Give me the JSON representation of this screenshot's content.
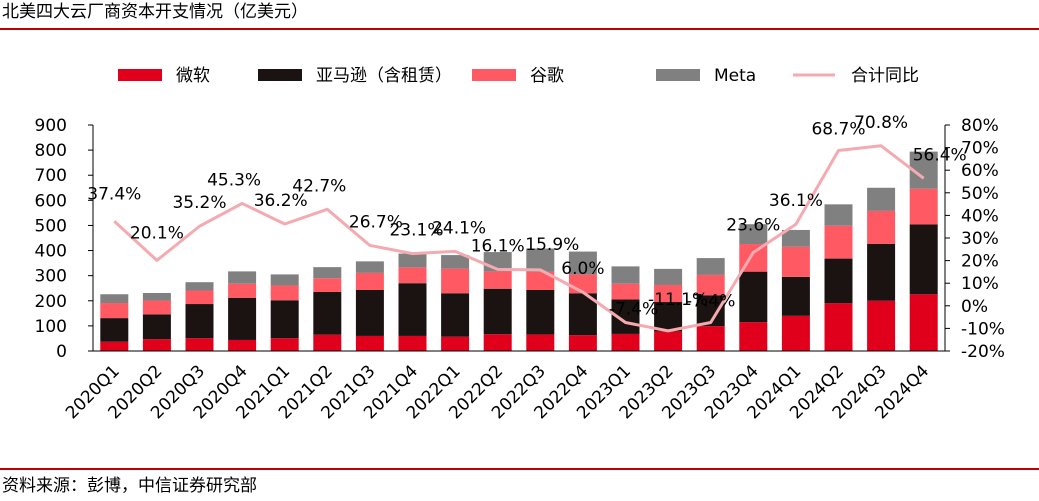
{
  "title": "北美四大云厂商资本开支情况（亿美元）",
  "source": "资料来源：彭博，中信证券研究部",
  "colors": {
    "microsoft": "#e0001b",
    "amazon": "#1a1311",
    "google": "#ff5a64",
    "meta": "#808080",
    "growth": "#f4aab0",
    "rule": "#c00000"
  },
  "chart_data": {
    "type": "bar",
    "stacked": true,
    "categories": [
      "2020Q1",
      "2020Q2",
      "2020Q3",
      "2020Q4",
      "2021Q1",
      "2021Q2",
      "2021Q3",
      "2021Q4",
      "2022Q1",
      "2022Q2",
      "2022Q3",
      "2022Q4",
      "2023Q1",
      "2023Q2",
      "2023Q3",
      "2023Q4",
      "2024Q1",
      "2024Q2",
      "2024Q3",
      "2024Q4"
    ],
    "series": [
      {
        "name": "微软",
        "color_key": "microsoft",
        "values": [
          37,
          47,
          51,
          44,
          51,
          65,
          60,
          60,
          57,
          67,
          66,
          63,
          68,
          78,
          99,
          115,
          140,
          190,
          200,
          226
        ]
      },
      {
        "name": "亚马逊（含租赁）",
        "color_key": "amazon",
        "values": [
          94,
          99,
          136,
          168,
          151,
          170,
          183,
          210,
          173,
          181,
          177,
          167,
          137,
          117,
          123,
          201,
          155,
          178,
          227,
          278
        ]
      },
      {
        "name": "谷歌",
        "color_key": "google",
        "values": [
          60,
          55,
          54,
          56,
          59,
          55,
          68,
          63,
          98,
          69,
          72,
          75,
          63,
          68,
          81,
          110,
          120,
          131,
          131,
          142
        ]
      },
      {
        "name": "Meta",
        "color_key": "meta",
        "values": [
          35,
          30,
          33,
          49,
          44,
          44,
          46,
          55,
          54,
          77,
          93,
          91,
          69,
          64,
          67,
          79,
          67,
          85,
          92,
          148
        ]
      }
    ],
    "line": {
      "name": "合计同比",
      "color_key": "growth",
      "axis": "right",
      "values": [
        37.4,
        20.1,
        35.2,
        45.3,
        36.2,
        42.7,
        26.7,
        23.1,
        24.1,
        16.1,
        15.9,
        6.0,
        -7.4,
        -11.1,
        -7.4,
        23.6,
        36.1,
        68.7,
        70.8,
        56.4
      ],
      "labels": [
        "37.4%",
        "20.1%",
        "35.2%",
        "45.3%",
        "36.2%",
        "42.7%",
        "26.7%",
        "23.1%",
        "24.1%",
        "16.1%",
        "15.9%",
        "6.0%",
        "-7.4%",
        "-11.1%",
        "-7.4%",
        "23.6%",
        "36.1%",
        "68.7%",
        "70.8%",
        "56.4%"
      ]
    },
    "ylim": [
      0,
      900
    ],
    "yticks": [
      "0",
      "100",
      "200",
      "300",
      "400",
      "500",
      "600",
      "700",
      "800",
      "900"
    ],
    "ylim_right": [
      -20,
      80
    ],
    "yticks_right": [
      "-20%",
      "-10%",
      "0%",
      "10%",
      "20%",
      "30%",
      "40%",
      "50%",
      "60%",
      "70%",
      "80%"
    ],
    "legend": "top",
    "grid": false
  }
}
